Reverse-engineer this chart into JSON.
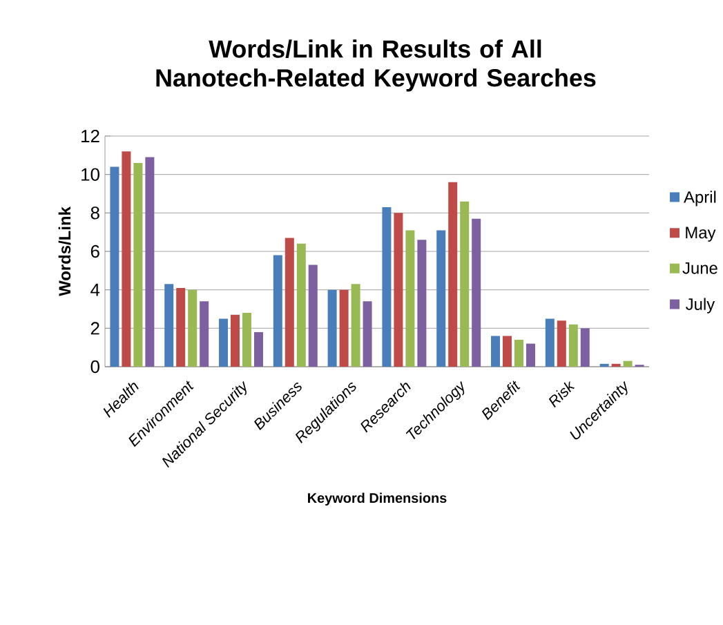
{
  "chart_data": {
    "type": "bar",
    "title": "Words/Link in Results of All Nanotech-Related Keyword Searches",
    "xlabel": "Keyword Dimensions",
    "ylabel": "Words/Link",
    "categories": [
      "Health",
      "Environment",
      "National Security",
      "Business",
      "Regulations",
      "Research",
      "Technology",
      "Benefit",
      "Risk",
      "Uncertainty"
    ],
    "series": [
      {
        "name": "April",
        "color": "#4a7ebb",
        "values": [
          10.4,
          4.3,
          2.5,
          5.8,
          4.0,
          8.3,
          7.1,
          1.6,
          2.5,
          0.15
        ]
      },
      {
        "name": "May",
        "color": "#be4b48",
        "values": [
          11.2,
          4.1,
          2.7,
          6.7,
          4.0,
          8.0,
          9.6,
          1.6,
          2.4,
          0.15
        ]
      },
      {
        "name": "June",
        "color": "#98b954",
        "values": [
          10.6,
          4.0,
          2.8,
          6.4,
          4.3,
          7.1,
          8.6,
          1.4,
          2.2,
          0.3
        ]
      },
      {
        "name": "July",
        "color": "#7d60a0",
        "values": [
          10.9,
          3.4,
          1.8,
          5.3,
          3.4,
          6.6,
          7.7,
          1.2,
          2.0,
          0.1
        ]
      }
    ],
    "ylim": [
      0,
      12
    ],
    "yticks": [
      0,
      2,
      4,
      6,
      8,
      10,
      12
    ],
    "grid": "y",
    "legend": "right"
  }
}
